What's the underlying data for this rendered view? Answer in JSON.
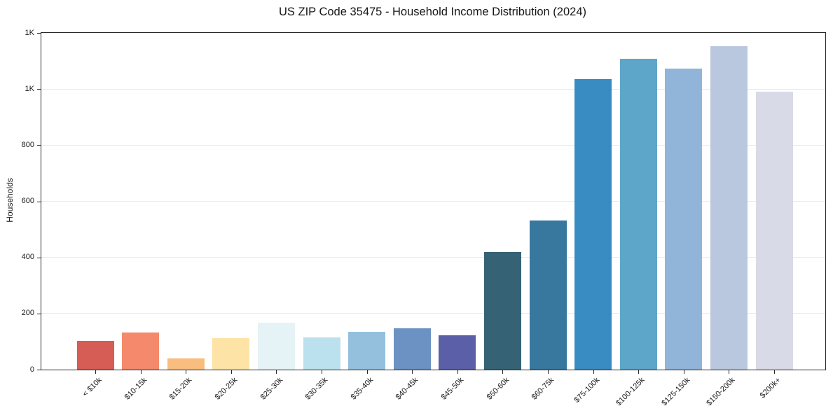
{
  "chart_data": {
    "type": "bar",
    "title": "US ZIP Code 35475 - Household Income Distribution (2024)",
    "xlabel": "",
    "ylabel": "Households",
    "categories": [
      "< $10k",
      "$10-15k",
      "$15-20k",
      "$20-25k",
      "$25-30k",
      "$30-35k",
      "$35-40k",
      "$40-45k",
      "$45-50k",
      "$50-60k",
      "$60-75k",
      "$75-100k",
      "$100-125k",
      "$125-150k",
      "$150-200k",
      "$200k+"
    ],
    "values": [
      103,
      132,
      40,
      112,
      168,
      114,
      135,
      147,
      123,
      420,
      532,
      1035,
      1108,
      1073,
      1152,
      990
    ],
    "bar_colors": [
      "#d65d55",
      "#f48a6b",
      "#f9bd80",
      "#fde3a5",
      "#e5f2f6",
      "#bce1ee",
      "#95c0dd",
      "#6c92c4",
      "#5a5fa7",
      "#366275",
      "#38789f",
      "#398cc1",
      "#5ea6c9",
      "#90b5d8",
      "#bac8df",
      "#d8dae7"
    ],
    "ylim": [
      0,
      1200
    ],
    "yticks": {
      "values": [
        0,
        200,
        400,
        600,
        800,
        1000,
        1200
      ],
      "labels": [
        "0",
        "200",
        "400",
        "600",
        "800",
        "1K",
        "1K"
      ]
    },
    "grid": "horizontal",
    "legend": "none",
    "colors": {
      "gridline": "#e7e7e9",
      "spine": "#262626",
      "tick": "#262626",
      "text": "#1a1a1a",
      "background": "#ffffff"
    }
  }
}
